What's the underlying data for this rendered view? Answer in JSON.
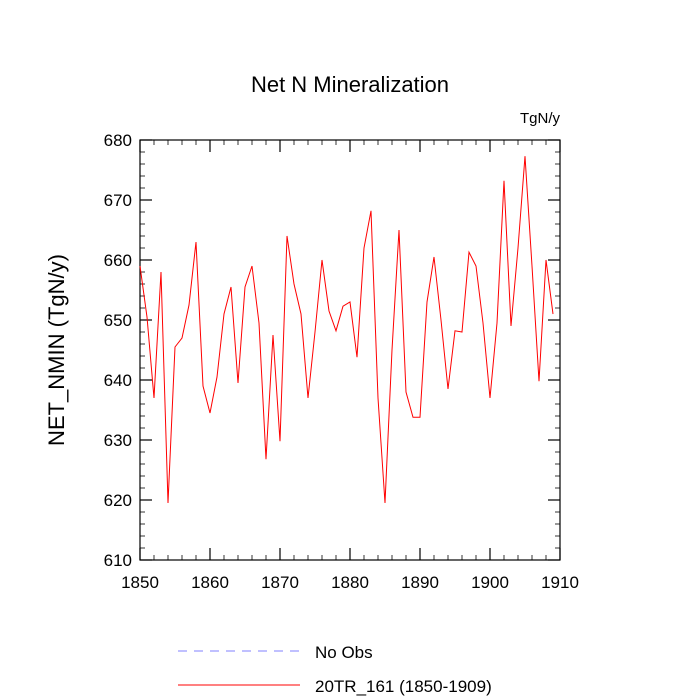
{
  "chart_data": {
    "type": "line",
    "title": "Net N Mineralization",
    "units": "TgN/y",
    "ylabel": "NET_NMIN  (TgN/y)",
    "xlabel": "",
    "xlim": [
      1850,
      1910
    ],
    "ylim": [
      610,
      680
    ],
    "xticks": [
      1850,
      1860,
      1870,
      1880,
      1890,
      1900,
      1910
    ],
    "yticks": [
      610,
      620,
      630,
      640,
      650,
      660,
      670,
      680
    ],
    "legend": [
      {
        "label": "No Obs",
        "style": "dashed",
        "color": "#8080ff"
      },
      {
        "label": "20TR_161 (1850-1909)",
        "style": "solid",
        "color": "#ff0000"
      }
    ],
    "series": [
      {
        "name": "20TR_161 (1850-1909)",
        "color": "#ff0000",
        "x": [
          1850,
          1851,
          1852,
          1853,
          1854,
          1855,
          1856,
          1857,
          1858,
          1859,
          1860,
          1861,
          1862,
          1863,
          1864,
          1865,
          1866,
          1867,
          1868,
          1869,
          1870,
          1871,
          1872,
          1873,
          1874,
          1875,
          1876,
          1877,
          1878,
          1879,
          1880,
          1881,
          1882,
          1883,
          1884,
          1885,
          1886,
          1887,
          1888,
          1889,
          1890,
          1891,
          1892,
          1893,
          1894,
          1895,
          1896,
          1897,
          1898,
          1899,
          1900,
          1901,
          1902,
          1903,
          1904,
          1905,
          1906,
          1907,
          1908,
          1909
        ],
        "values": [
          659.0,
          650.5,
          637.0,
          658.0,
          619.5,
          645.5,
          647.0,
          652.5,
          663.0,
          639.0,
          634.5,
          640.5,
          651.0,
          655.5,
          639.5,
          655.5,
          659.0,
          649.5,
          626.8,
          647.5,
          629.8,
          664.0,
          656.0,
          651.0,
          637.0,
          648.0,
          660.0,
          651.5,
          648.2,
          652.3,
          653.0,
          643.8,
          662.0,
          668.2,
          637.0,
          619.5,
          645.0,
          665.0,
          638.0,
          633.8,
          633.8,
          653.0,
          660.5,
          650.0,
          638.5,
          648.2,
          648.0,
          661.3,
          659.0,
          649.5,
          637.0,
          649.5,
          673.2,
          649.0,
          662.0,
          677.3,
          659.0,
          639.8,
          660.0,
          651.0
        ]
      }
    ]
  }
}
